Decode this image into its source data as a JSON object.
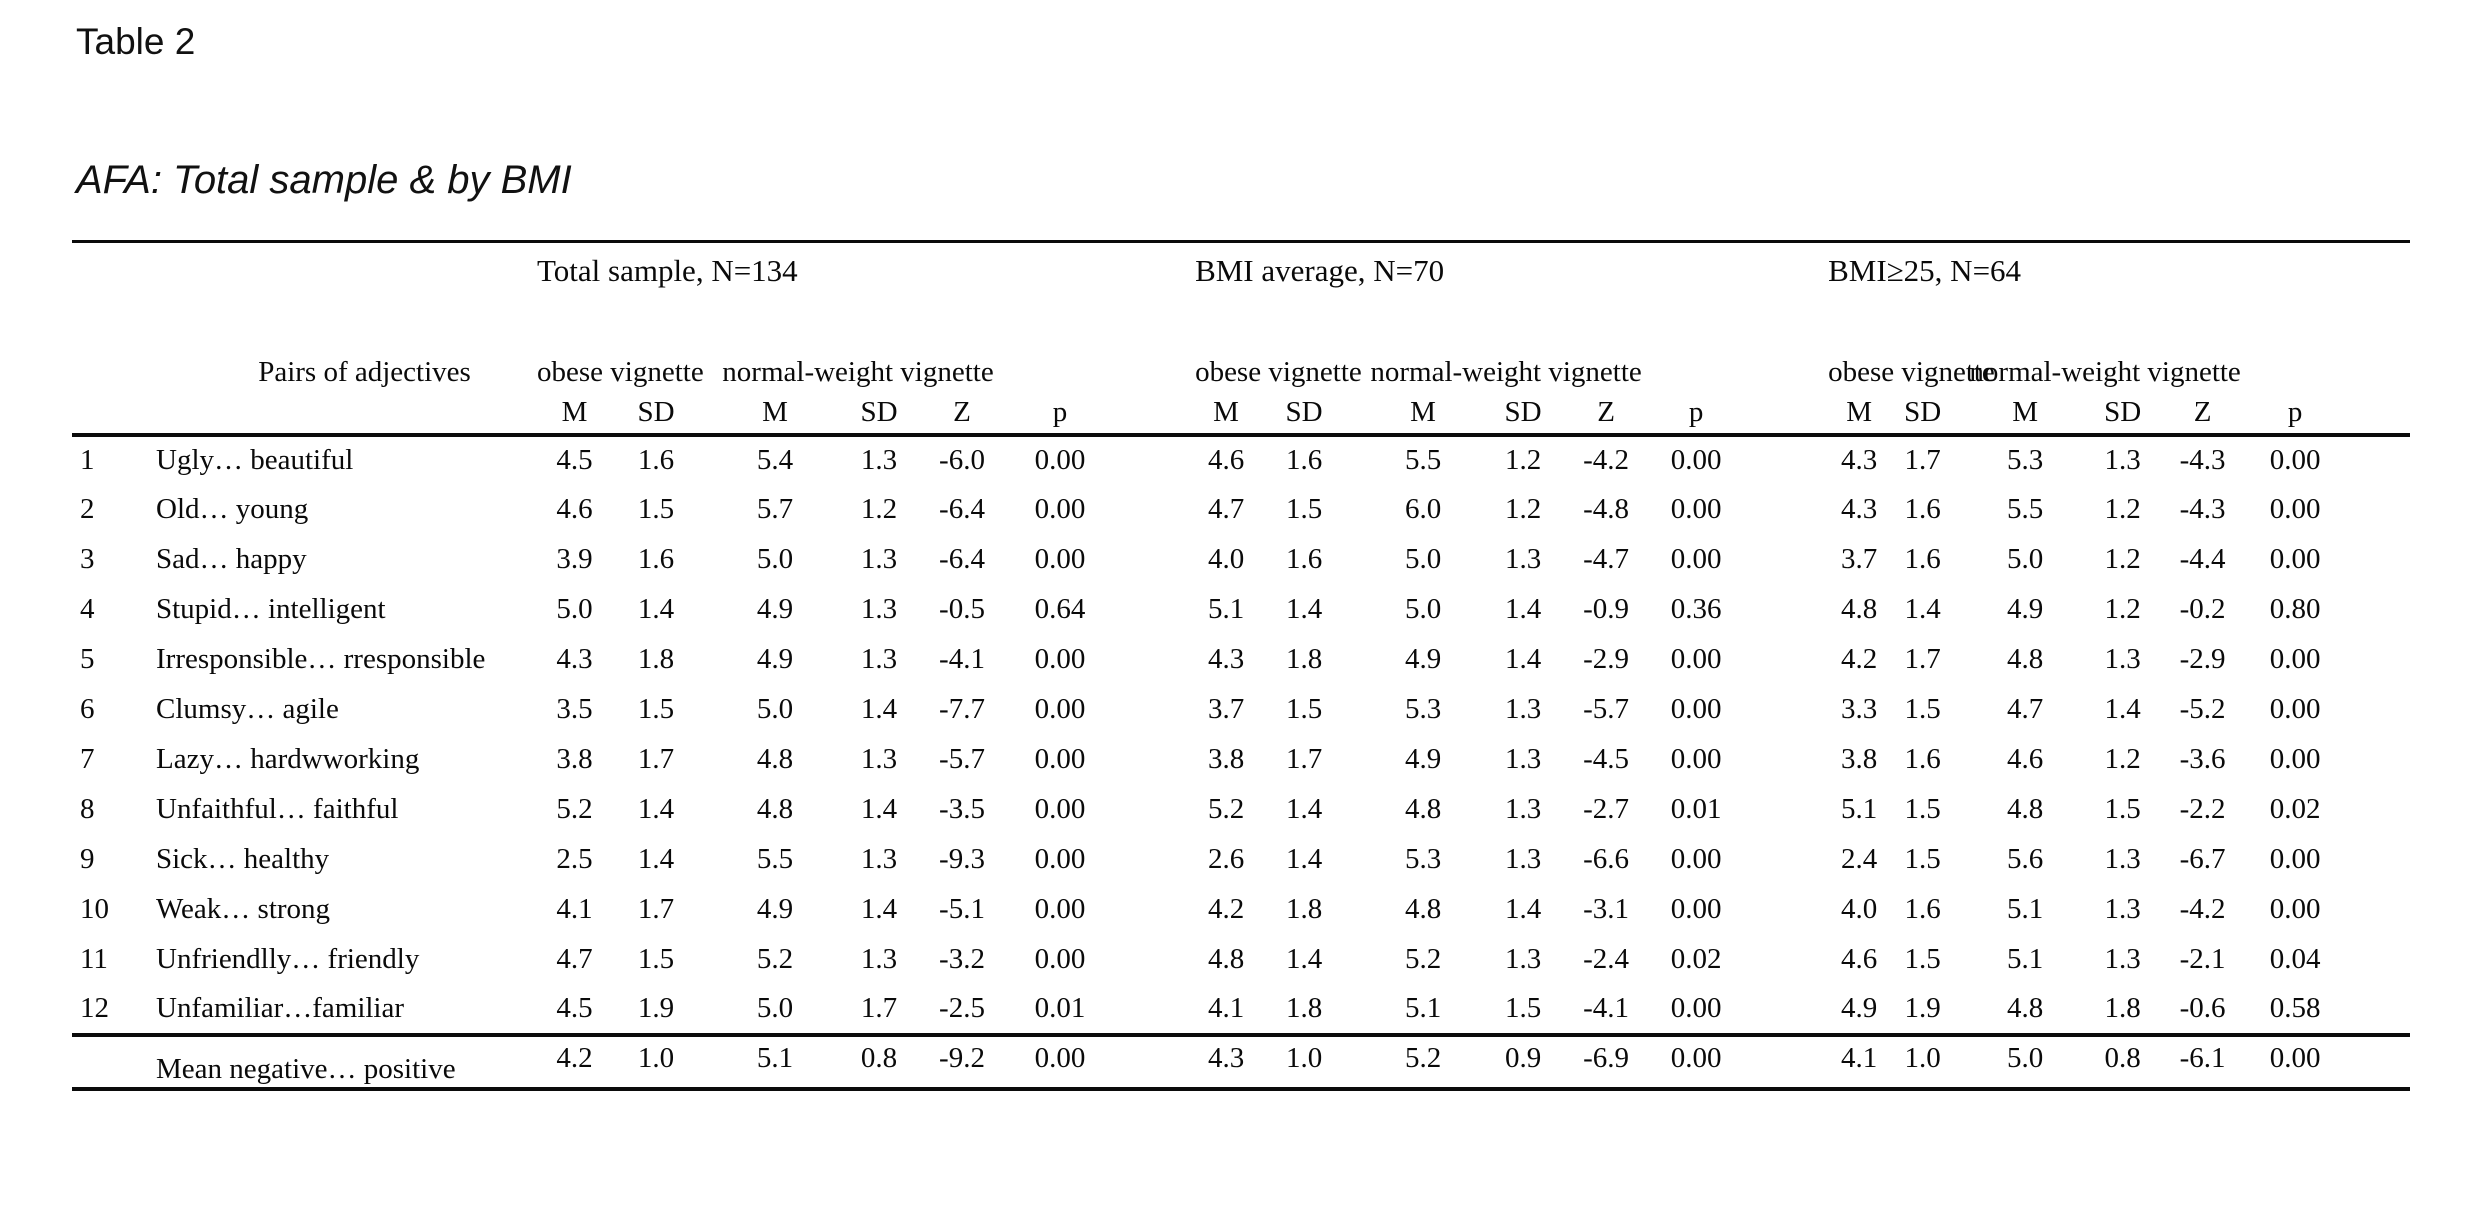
{
  "page": {
    "label": "Table 2",
    "title": "AFA: Total sample & by BMI"
  },
  "table": {
    "group_headers": [
      "Total sample, N=134",
      "BMI average, N=70",
      "BMI≥25, N=64"
    ],
    "pairs_header": "Pairs of adjectives",
    "vignette_headers": [
      "obese vignette",
      "normal-weight vignette"
    ],
    "stat_headers": [
      "M",
      "SD",
      "M",
      "SD",
      "Z",
      "p"
    ],
    "rows": [
      {
        "num": "1",
        "label": "Ugly… beautiful",
        "total": [
          "4.5",
          "1.6",
          "5.4",
          "1.3",
          "-6.0",
          "0.00"
        ],
        "bmi_avg": [
          "4.6",
          "1.6",
          "5.5",
          "1.2",
          "-4.2",
          "0.00"
        ],
        "bmi_over25": [
          "4.3",
          "1.7",
          "5.3",
          "1.3",
          "-4.3",
          "0.00"
        ]
      },
      {
        "num": "2",
        "label": "Old… young",
        "total": [
          "4.6",
          "1.5",
          "5.7",
          "1.2",
          "-6.4",
          "0.00"
        ],
        "bmi_avg": [
          "4.7",
          "1.5",
          "6.0",
          "1.2",
          "-4.8",
          "0.00"
        ],
        "bmi_over25": [
          "4.3",
          "1.6",
          "5.5",
          "1.2",
          "-4.3",
          "0.00"
        ]
      },
      {
        "num": "3",
        "label": "Sad… happy",
        "total": [
          "3.9",
          "1.6",
          "5.0",
          "1.3",
          "-6.4",
          "0.00"
        ],
        "bmi_avg": [
          "4.0",
          "1.6",
          "5.0",
          "1.3",
          "-4.7",
          "0.00"
        ],
        "bmi_over25": [
          "3.7",
          "1.6",
          "5.0",
          "1.2",
          "-4.4",
          "0.00"
        ]
      },
      {
        "num": "4",
        "label": "Stupid… intelligent",
        "total": [
          "5.0",
          "1.4",
          "4.9",
          "1.3",
          "-0.5",
          "0.64"
        ],
        "bmi_avg": [
          "5.1",
          "1.4",
          "5.0",
          "1.4",
          "-0.9",
          "0.36"
        ],
        "bmi_over25": [
          "4.8",
          "1.4",
          "4.9",
          "1.2",
          "-0.2",
          "0.80"
        ]
      },
      {
        "num": "5",
        "label": "Irresponsible… rresponsible",
        "total": [
          "4.3",
          "1.8",
          "4.9",
          "1.3",
          "-4.1",
          "0.00"
        ],
        "bmi_avg": [
          "4.3",
          "1.8",
          "4.9",
          "1.4",
          "-2.9",
          "0.00"
        ],
        "bmi_over25": [
          "4.2",
          "1.7",
          "4.8",
          "1.3",
          "-2.9",
          "0.00"
        ]
      },
      {
        "num": "6",
        "label": "Clumsy… agile",
        "total": [
          "3.5",
          "1.5",
          "5.0",
          "1.4",
          "-7.7",
          "0.00"
        ],
        "bmi_avg": [
          "3.7",
          "1.5",
          "5.3",
          "1.3",
          "-5.7",
          "0.00"
        ],
        "bmi_over25": [
          "3.3",
          "1.5",
          "4.7",
          "1.4",
          "-5.2",
          "0.00"
        ]
      },
      {
        "num": "7",
        "label": "Lazy… hardwworking",
        "total": [
          "3.8",
          "1.7",
          "4.8",
          "1.3",
          "-5.7",
          "0.00"
        ],
        "bmi_avg": [
          "3.8",
          "1.7",
          "4.9",
          "1.3",
          "-4.5",
          "0.00"
        ],
        "bmi_over25": [
          "3.8",
          "1.6",
          "4.6",
          "1.2",
          "-3.6",
          "0.00"
        ]
      },
      {
        "num": "8",
        "label": "Unfaithful… faithful",
        "total": [
          "5.2",
          "1.4",
          "4.8",
          "1.4",
          "-3.5",
          "0.00"
        ],
        "bmi_avg": [
          "5.2",
          "1.4",
          "4.8",
          "1.3",
          "-2.7",
          "0.01"
        ],
        "bmi_over25": [
          "5.1",
          "1.5",
          "4.8",
          "1.5",
          "-2.2",
          "0.02"
        ]
      },
      {
        "num": "9",
        "label": "Sick… healthy",
        "total": [
          "2.5",
          "1.4",
          "5.5",
          "1.3",
          "-9.3",
          "0.00"
        ],
        "bmi_avg": [
          "2.6",
          "1.4",
          "5.3",
          "1.3",
          "-6.6",
          "0.00"
        ],
        "bmi_over25": [
          "2.4",
          "1.5",
          "5.6",
          "1.3",
          "-6.7",
          "0.00"
        ]
      },
      {
        "num": "10",
        "label": "Weak… strong",
        "total": [
          "4.1",
          "1.7",
          "4.9",
          "1.4",
          "-5.1",
          "0.00"
        ],
        "bmi_avg": [
          "4.2",
          "1.8",
          "4.8",
          "1.4",
          "-3.1",
          "0.00"
        ],
        "bmi_over25": [
          "4.0",
          "1.6",
          "5.1",
          "1.3",
          "-4.2",
          "0.00"
        ]
      },
      {
        "num": "11",
        "label": "Unfriendlly… friendly",
        "total": [
          "4.7",
          "1.5",
          "5.2",
          "1.3",
          "-3.2",
          "0.00"
        ],
        "bmi_avg": [
          "4.8",
          "1.4",
          "5.2",
          "1.3",
          "-2.4",
          "0.02"
        ],
        "bmi_over25": [
          "4.6",
          "1.5",
          "5.1",
          "1.3",
          "-2.1",
          "0.04"
        ]
      },
      {
        "num": "12",
        "label": "Unfamiliar…familiar",
        "total": [
          "4.5",
          "1.9",
          "5.0",
          "1.7",
          "-2.5",
          "0.01"
        ],
        "bmi_avg": [
          "4.1",
          "1.8",
          "5.1",
          "1.5",
          "-4.1",
          "0.00"
        ],
        "bmi_over25": [
          "4.9",
          "1.9",
          "4.8",
          "1.8",
          "-0.6",
          "0.58"
        ]
      }
    ],
    "mean_row": {
      "label": "Mean negative… positive",
      "total": [
        "4.2",
        "1.0",
        "5.1",
        "0.8",
        "-9.2",
        "0.00"
      ],
      "bmi_avg": [
        "4.3",
        "1.0",
        "5.2",
        "0.9",
        "-6.9",
        "0.00"
      ],
      "bmi_over25": [
        "4.1",
        "1.0",
        "5.0",
        "0.8",
        "-6.1",
        "0.00"
      ]
    }
  }
}
